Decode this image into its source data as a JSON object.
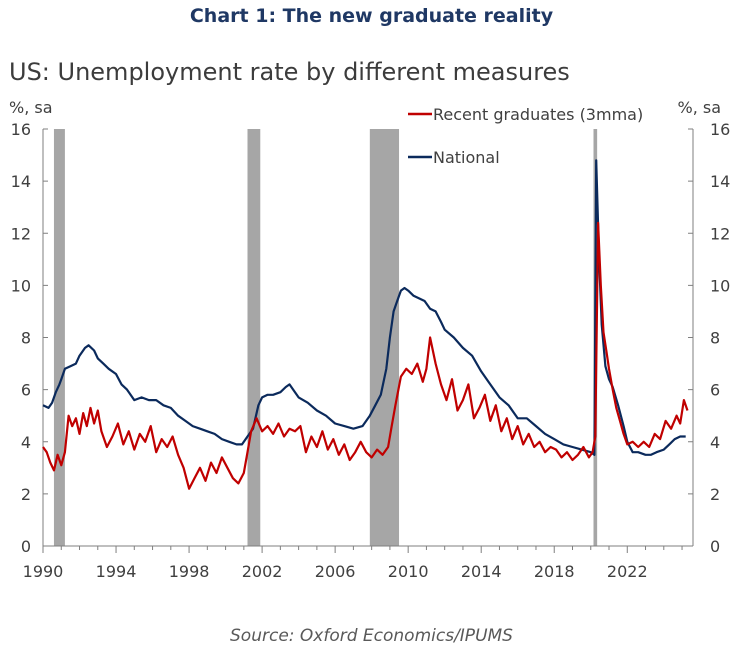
{
  "heading": "Chart 1: The new graduate reality",
  "source": "Source: Oxford Economics/IPUMS",
  "colors": {
    "heading": "#1f3864",
    "graduates": "#c00000",
    "national": "#0b2a5c",
    "recession": "#a6a6a6",
    "axis": "#7f7f7f"
  },
  "chart_data": {
    "type": "line",
    "title": "US: Unemployment rate by different measures",
    "ylabel_left": "%, sa",
    "ylabel_right": "%, sa",
    "xlim": [
      1990,
      2025.6
    ],
    "ylim": [
      0,
      16
    ],
    "yticks": [
      0,
      2,
      4,
      6,
      8,
      10,
      12,
      14,
      16
    ],
    "ytick_labels": [
      "0",
      "2",
      "4",
      "6",
      "8",
      "10",
      "12",
      "14",
      "16"
    ],
    "xticks": [
      1990,
      1994,
      1998,
      2002,
      2006,
      2010,
      2014,
      2018,
      2022
    ],
    "xtick_labels": [
      "1990",
      "1994",
      "1998",
      "2002",
      "2006",
      "2010",
      "2014",
      "2018",
      "2022"
    ],
    "legend": [
      {
        "name": "Recent graduates (3mma)",
        "color": "#c00000"
      },
      {
        "name": "National",
        "color": "#0b2a5c"
      }
    ],
    "recessions": [
      [
        1990.6,
        1991.2
      ],
      [
        2001.2,
        2001.9
      ],
      [
        2007.9,
        2009.5
      ],
      [
        2020.15,
        2020.35
      ]
    ],
    "series": [
      {
        "name": "National",
        "color": "#0b2a5c",
        "x": [
          1990.0,
          1990.3,
          1990.5,
          1990.7,
          1990.9,
          1991.0,
          1991.2,
          1991.5,
          1991.8,
          1992.0,
          1992.3,
          1992.5,
          1992.8,
          1993.0,
          1993.3,
          1993.6,
          1994.0,
          1994.3,
          1994.6,
          1995.0,
          1995.4,
          1995.8,
          1996.2,
          1996.6,
          1997.0,
          1997.4,
          1997.8,
          1998.2,
          1998.6,
          1999.0,
          1999.4,
          1999.8,
          2000.2,
          2000.6,
          2000.9,
          2001.2,
          2001.5,
          2001.8,
          2002.0,
          2002.3,
          2002.6,
          2003.0,
          2003.3,
          2003.5,
          2003.8,
          2004.0,
          2004.5,
          2005.0,
          2005.5,
          2006.0,
          2006.5,
          2007.0,
          2007.5,
          2007.9,
          2008.2,
          2008.5,
          2008.8,
          2009.0,
          2009.2,
          2009.4,
          2009.6,
          2009.8,
          2010.0,
          2010.3,
          2010.6,
          2010.9,
          2011.2,
          2011.5,
          2011.8,
          2012.0,
          2012.5,
          2013.0,
          2013.5,
          2014.0,
          2014.5,
          2015.0,
          2015.5,
          2016.0,
          2016.5,
          2017.0,
          2017.5,
          2018.0,
          2018.5,
          2019.0,
          2019.5,
          2020.0,
          2020.2,
          2020.3,
          2020.45,
          2020.6,
          2020.8,
          2021.0,
          2021.2,
          2021.5,
          2021.8,
          2022.0,
          2022.3,
          2022.6,
          2023.0,
          2023.3,
          2023.6,
          2024.0,
          2024.3,
          2024.6,
          2024.9,
          2025.2
        ],
        "values": [
          5.4,
          5.3,
          5.5,
          5.9,
          6.2,
          6.4,
          6.8,
          6.9,
          7.0,
          7.3,
          7.6,
          7.7,
          7.5,
          7.2,
          7.0,
          6.8,
          6.6,
          6.2,
          6.0,
          5.6,
          5.7,
          5.6,
          5.6,
          5.4,
          5.3,
          5.0,
          4.8,
          4.6,
          4.5,
          4.4,
          4.3,
          4.1,
          4.0,
          3.9,
          3.9,
          4.2,
          4.5,
          5.4,
          5.7,
          5.8,
          5.8,
          5.9,
          6.1,
          6.2,
          5.9,
          5.7,
          5.5,
          5.2,
          5.0,
          4.7,
          4.6,
          4.5,
          4.6,
          5.0,
          5.4,
          5.8,
          6.8,
          8.0,
          9.0,
          9.4,
          9.8,
          9.9,
          9.8,
          9.6,
          9.5,
          9.4,
          9.1,
          9.0,
          8.6,
          8.3,
          8.0,
          7.6,
          7.3,
          6.7,
          6.2,
          5.7,
          5.4,
          4.9,
          4.9,
          4.6,
          4.3,
          4.1,
          3.9,
          3.8,
          3.7,
          3.6,
          3.5,
          14.8,
          11.1,
          8.5,
          6.9,
          6.4,
          6.1,
          5.4,
          4.6,
          4.0,
          3.6,
          3.6,
          3.5,
          3.5,
          3.6,
          3.7,
          3.9,
          4.1,
          4.2,
          4.2
        ]
      },
      {
        "name": "Recent graduates (3mma)",
        "color": "#c00000",
        "x": [
          1990.0,
          1990.2,
          1990.4,
          1990.6,
          1990.8,
          1991.0,
          1991.2,
          1991.4,
          1991.6,
          1991.8,
          1992.0,
          1992.2,
          1992.4,
          1992.6,
          1992.8,
          1993.0,
          1993.2,
          1993.5,
          1993.8,
          1994.1,
          1994.4,
          1994.7,
          1995.0,
          1995.3,
          1995.6,
          1995.9,
          1996.2,
          1996.5,
          1996.8,
          1997.1,
          1997.4,
          1997.7,
          1998.0,
          1998.3,
          1998.6,
          1998.9,
          1999.2,
          1999.5,
          1999.8,
          2000.1,
          2000.4,
          2000.7,
          2001.0,
          2001.2,
          2001.4,
          2001.7,
          2002.0,
          2002.3,
          2002.6,
          2002.9,
          2003.2,
          2003.5,
          2003.8,
          2004.1,
          2004.4,
          2004.7,
          2005.0,
          2005.3,
          2005.6,
          2005.9,
          2006.2,
          2006.5,
          2006.8,
          2007.1,
          2007.4,
          2007.7,
          2008.0,
          2008.3,
          2008.6,
          2008.9,
          2009.1,
          2009.3,
          2009.6,
          2009.9,
          2010.2,
          2010.5,
          2010.8,
          2011.0,
          2011.2,
          2011.5,
          2011.8,
          2012.1,
          2012.4,
          2012.7,
          2013.0,
          2013.3,
          2013.6,
          2013.9,
          2014.2,
          2014.5,
          2014.8,
          2015.1,
          2015.4,
          2015.7,
          2016.0,
          2016.3,
          2016.6,
          2016.9,
          2017.2,
          2017.5,
          2017.8,
          2018.1,
          2018.4,
          2018.7,
          2019.0,
          2019.3,
          2019.6,
          2019.9,
          2020.1,
          2020.25,
          2020.4,
          2020.55,
          2020.7,
          2020.85,
          2021.0,
          2021.2,
          2021.4,
          2021.6,
          2021.8,
          2022.0,
          2022.3,
          2022.6,
          2022.9,
          2023.2,
          2023.5,
          2023.8,
          2024.1,
          2024.4,
          2024.7,
          2024.9,
          2025.1,
          2025.3
        ],
        "values": [
          3.8,
          3.6,
          3.2,
          2.9,
          3.5,
          3.1,
          3.6,
          5.0,
          4.6,
          4.9,
          4.3,
          5.1,
          4.6,
          5.3,
          4.7,
          5.2,
          4.4,
          3.8,
          4.2,
          4.7,
          3.9,
          4.4,
          3.7,
          4.3,
          4.0,
          4.6,
          3.6,
          4.1,
          3.8,
          4.2,
          3.5,
          3.0,
          2.2,
          2.6,
          3.0,
          2.5,
          3.2,
          2.8,
          3.4,
          3.0,
          2.6,
          2.4,
          2.8,
          3.6,
          4.4,
          4.9,
          4.4,
          4.6,
          4.3,
          4.7,
          4.2,
          4.5,
          4.4,
          4.6,
          3.6,
          4.2,
          3.8,
          4.4,
          3.7,
          4.1,
          3.5,
          3.9,
          3.3,
          3.6,
          4.0,
          3.6,
          3.4,
          3.7,
          3.5,
          3.8,
          4.6,
          5.4,
          6.5,
          6.8,
          6.6,
          7.0,
          6.3,
          6.8,
          8.0,
          7.0,
          6.2,
          5.6,
          6.4,
          5.2,
          5.6,
          6.2,
          4.9,
          5.3,
          5.8,
          4.8,
          5.4,
          4.4,
          4.9,
          4.1,
          4.6,
          3.9,
          4.3,
          3.8,
          4.0,
          3.6,
          3.8,
          3.7,
          3.4,
          3.6,
          3.3,
          3.5,
          3.8,
          3.4,
          3.6,
          4.2,
          12.4,
          10.0,
          8.2,
          7.5,
          6.8,
          6.0,
          5.3,
          4.8,
          4.3,
          3.9,
          4.0,
          3.8,
          4.0,
          3.8,
          4.3,
          4.1,
          4.8,
          4.5,
          5.0,
          4.7,
          5.6,
          5.2
        ]
      }
    ]
  }
}
